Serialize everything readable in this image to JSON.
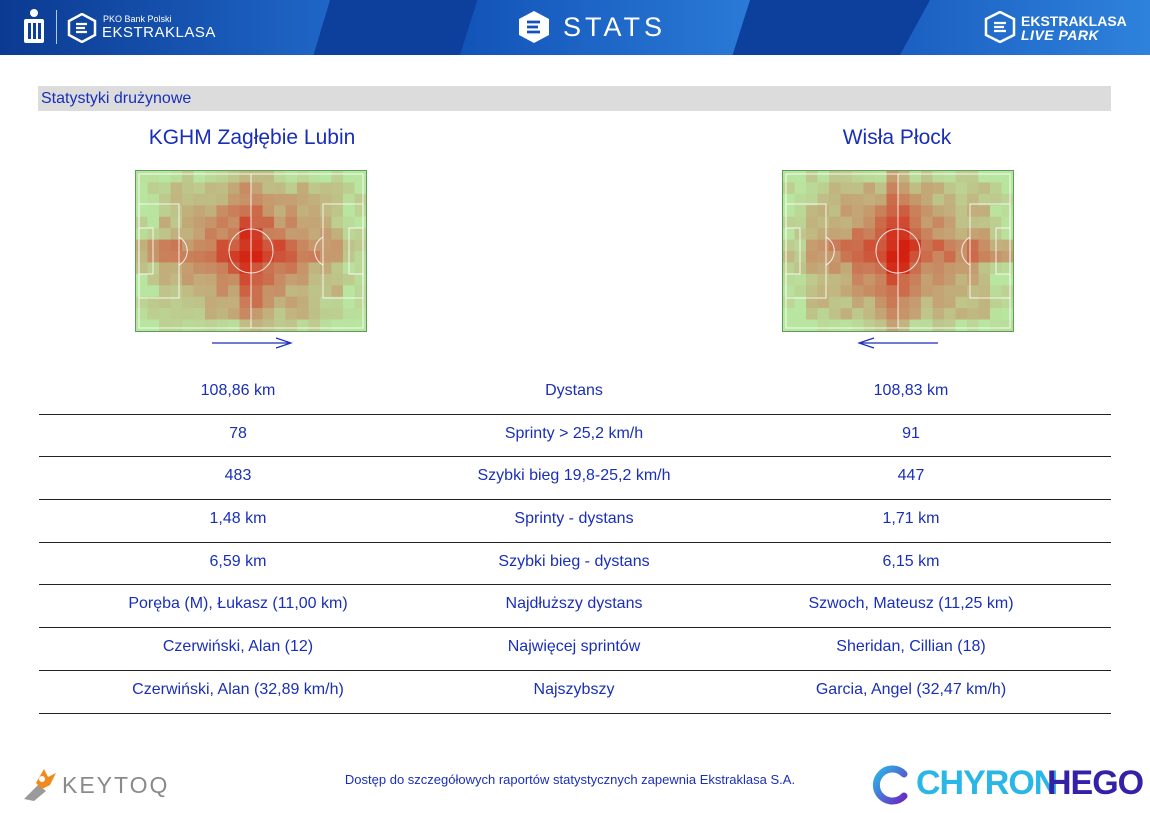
{
  "header": {
    "sponsor_line": "PKO Bank Polski",
    "league_name": "EKSTRAKLASA",
    "app_title": "STATS",
    "right_brand_line1": "EKSTRAKLASA",
    "right_brand_line2": "LIVE PARK"
  },
  "section": {
    "title": "Statystyki drużynowe"
  },
  "teams": {
    "home": {
      "name": "KGHM Zagłębie Lubin",
      "attack_direction": "right"
    },
    "away": {
      "name": "Wisła Płock",
      "attack_direction": "left"
    }
  },
  "stats": [
    {
      "home": "108,86 km",
      "label": "Dystans",
      "away": "108,83 km"
    },
    {
      "home": "78",
      "label": "Sprinty > 25,2 km/h",
      "away": "91"
    },
    {
      "home": "483",
      "label": "Szybki bieg 19,8-25,2 km/h",
      "away": "447"
    },
    {
      "home": "1,48 km",
      "label": "Sprinty - dystans",
      "away": "1,71 km"
    },
    {
      "home": "6,59 km",
      "label": "Szybki bieg - dystans",
      "away": "6,15 km"
    },
    {
      "home": "Poręba (M), Łukasz (11,00 km)",
      "label": "Najdłuższy dystans",
      "away": "Szwoch, Mateusz (11,25 km)"
    },
    {
      "home": "Czerwiński, Alan (12)",
      "label": "Najwięcej sprintów",
      "away": "Sheridan, Cillian (18)"
    },
    {
      "home": "Czerwiński, Alan (32,89 km/h)",
      "label": "Najszybszy",
      "away": "Garcia, Angel (32,47 km/h)"
    }
  ],
  "footer": {
    "left_brand": "KEYTOQ",
    "note": "Dostęp do szczegółowych raportów statystycznych zapewnia Ekstraklasa S.A.",
    "right_brand_part1": "CHYRON",
    "right_brand_part2": "HEGO"
  },
  "colors": {
    "header_blue": "#0d3f9c",
    "text_blue": "#1a2fb8",
    "section_bg": "#dcdcdc",
    "heat_low": "#b8e6a0",
    "heat_high": "#d42010"
  },
  "icons": [
    "pko-logo-icon",
    "ekstraklasa-logo-icon",
    "stats-logo-icon",
    "livepark-logo-icon",
    "keytoq-logo-icon",
    "chyron-logo-icon"
  ]
}
